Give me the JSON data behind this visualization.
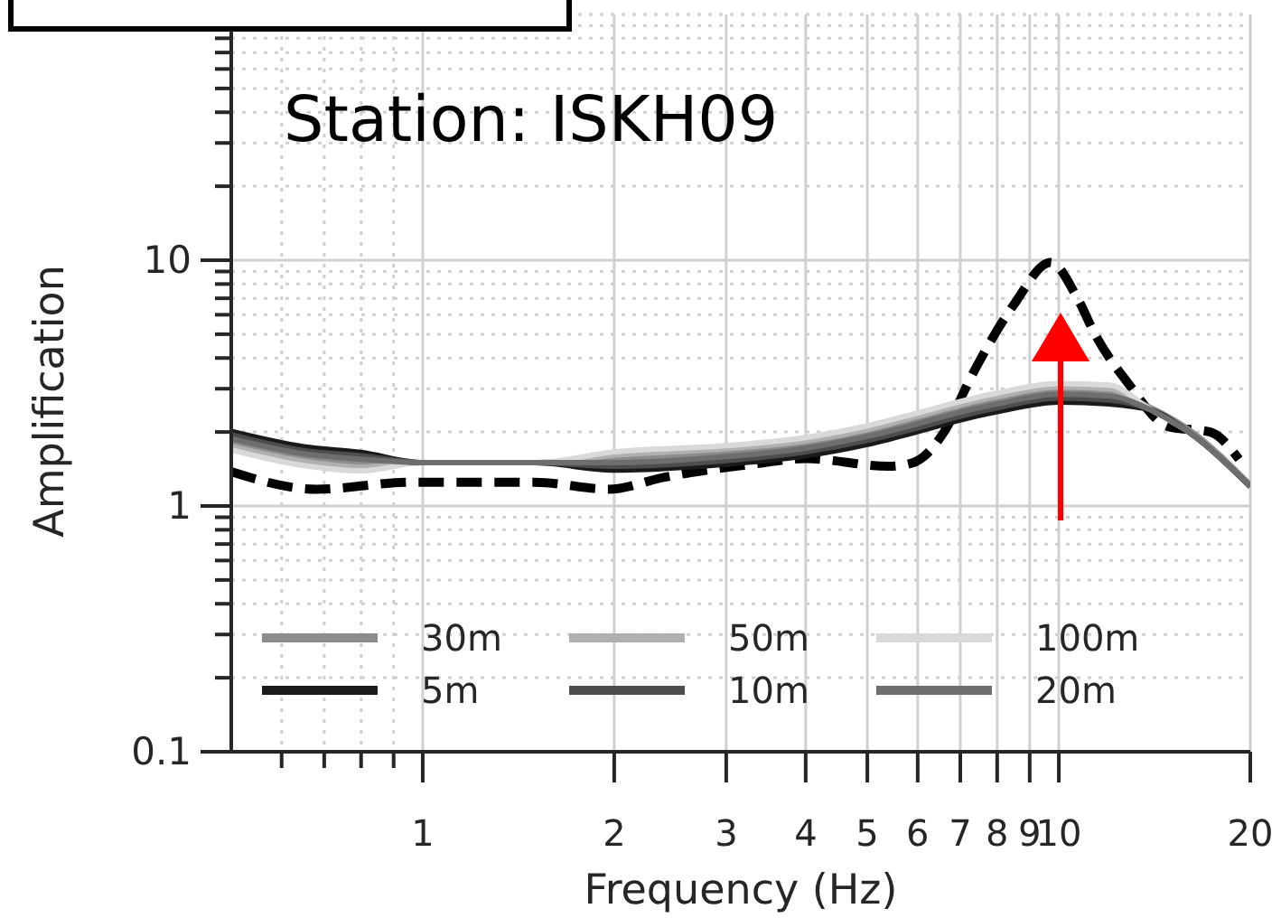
{
  "chart_data": {
    "type": "line",
    "title": "Station: ISKH09",
    "xlabel": "Frequency (Hz)",
    "ylabel": "Amplification",
    "log": "xy",
    "grid": true,
    "legend": "bottom",
    "xlim": [
      0.5,
      20
    ],
    "ylim": [
      0.1,
      100
    ],
    "xticks": [
      {
        "value": 0.6,
        "label": null
      },
      {
        "value": 0.7,
        "label": null
      },
      {
        "value": 0.8,
        "label": null
      },
      {
        "value": 0.9,
        "label": null
      },
      1,
      2,
      3,
      4,
      5,
      6,
      7,
      8,
      9,
      10,
      20
    ],
    "yticks": [
      0.1,
      {
        "value": 0.2,
        "label": null
      },
      {
        "value": 0.3,
        "label": null
      },
      {
        "value": 0.4,
        "label": null
      },
      {
        "value": 0.5,
        "label": null
      },
      {
        "value": 0.6,
        "label": null
      },
      {
        "value": 0.7,
        "label": null
      },
      {
        "value": 0.8,
        "label": null
      },
      {
        "value": 0.9,
        "label": null
      },
      1,
      {
        "value": 2,
        "label": null
      },
      {
        "value": 3,
        "label": null
      },
      {
        "value": 4,
        "label": null
      },
      {
        "value": 5,
        "label": null
      },
      {
        "value": 6,
        "label": null
      },
      {
        "value": 7,
        "label": null
      },
      {
        "value": 8,
        "label": null
      },
      {
        "value": 9,
        "label": null
      },
      10,
      {
        "value": 20,
        "label": null
      },
      {
        "value": 30,
        "label": null
      },
      {
        "value": 40,
        "label": null
      },
      {
        "value": 50,
        "label": null
      },
      {
        "value": 60,
        "label": null
      },
      {
        "value": 70,
        "label": null
      },
      {
        "value": 80,
        "label": null
      },
      {
        "value": 90,
        "label": null
      },
      {
        "value": 100,
        "label": null
      }
    ],
    "series": [
      {
        "color": "#000000",
        "line_style": "dashed",
        "x": [
          0.5,
          0.68,
          0.96,
          1.5,
          1.96,
          2.4,
          3.3,
          4,
          5.4,
          5.9,
          6.6,
          7.3,
          8.5,
          9.7,
          10.7,
          11.4,
          12.8,
          14.9,
          17.3,
          19.2
        ],
        "values": [
          1.38,
          1.17,
          1.25,
          1.25,
          1.17,
          1.31,
          1.48,
          1.56,
          1.45,
          1.5,
          2.0,
          3.4,
          6.6,
          9.8,
          7.0,
          5.0,
          3.2,
          2.1,
          2.0,
          1.55
        ]
      },
      {
        "name": "30m",
        "color": "#8c8c8c",
        "x": [
          0.5,
          0.65,
          0.8,
          1,
          1.5,
          2,
          3,
          4,
          5,
          6,
          7,
          8,
          10,
          12,
          14,
          16,
          20
        ],
        "values": [
          1.82,
          1.57,
          1.49,
          1.5,
          1.5,
          1.56,
          1.65,
          1.78,
          1.98,
          2.24,
          2.49,
          2.7,
          2.95,
          2.9,
          2.5,
          2.05,
          1.22
        ]
      },
      {
        "name": "50m",
        "color": "#b0b0b0",
        "x": [
          0.5,
          0.65,
          0.8,
          1,
          1.5,
          2,
          3,
          4,
          5,
          6,
          7,
          8,
          10,
          12,
          14,
          16,
          20
        ],
        "values": [
          1.75,
          1.52,
          1.44,
          1.5,
          1.5,
          1.61,
          1.71,
          1.84,
          2.05,
          2.32,
          2.58,
          2.79,
          3.05,
          3.0,
          2.45,
          2.0,
          1.2
        ]
      },
      {
        "name": "100m",
        "color": "#d9d9d9",
        "x": [
          0.5,
          0.65,
          0.8,
          1,
          1.5,
          2,
          3,
          4,
          5,
          6,
          7,
          8,
          10,
          12,
          14,
          16,
          20
        ],
        "values": [
          1.69,
          1.46,
          1.39,
          1.5,
          1.5,
          1.66,
          1.76,
          1.9,
          2.12,
          2.39,
          2.66,
          2.88,
          3.15,
          3.1,
          2.45,
          2.0,
          1.2
        ]
      },
      {
        "name": "5m",
        "color": "#1a1a1a",
        "x": [
          0.5,
          0.65,
          0.8,
          1,
          1.5,
          2,
          3,
          4,
          5,
          6,
          7,
          8,
          10,
          12,
          14,
          16,
          20
        ],
        "values": [
          2.01,
          1.74,
          1.65,
          1.5,
          1.5,
          1.4,
          1.48,
          1.6,
          1.78,
          2.01,
          2.24,
          2.42,
          2.65,
          2.6,
          2.45,
          2.0,
          1.2
        ]
      },
      {
        "name": "10m",
        "color": "#4d4d4d",
        "x": [
          0.5,
          0.65,
          0.8,
          1,
          1.5,
          2,
          3,
          4,
          5,
          6,
          7,
          8,
          10,
          12,
          14,
          16,
          20
        ],
        "values": [
          1.95,
          1.68,
          1.6,
          1.5,
          1.5,
          1.45,
          1.53,
          1.66,
          1.85,
          2.08,
          2.32,
          2.51,
          2.75,
          2.7,
          2.45,
          2.0,
          1.2
        ]
      },
      {
        "name": "20m",
        "color": "#6e6e6e",
        "x": [
          0.5,
          0.65,
          0.8,
          1,
          1.5,
          2,
          3,
          4,
          5,
          6,
          7,
          8,
          10,
          12,
          14,
          16,
          20
        ],
        "values": [
          1.88,
          1.63,
          1.55,
          1.5,
          1.5,
          1.5,
          1.59,
          1.72,
          1.92,
          2.16,
          2.41,
          2.6,
          2.85,
          2.8,
          2.45,
          2.0,
          1.2
        ]
      }
    ]
  }
}
